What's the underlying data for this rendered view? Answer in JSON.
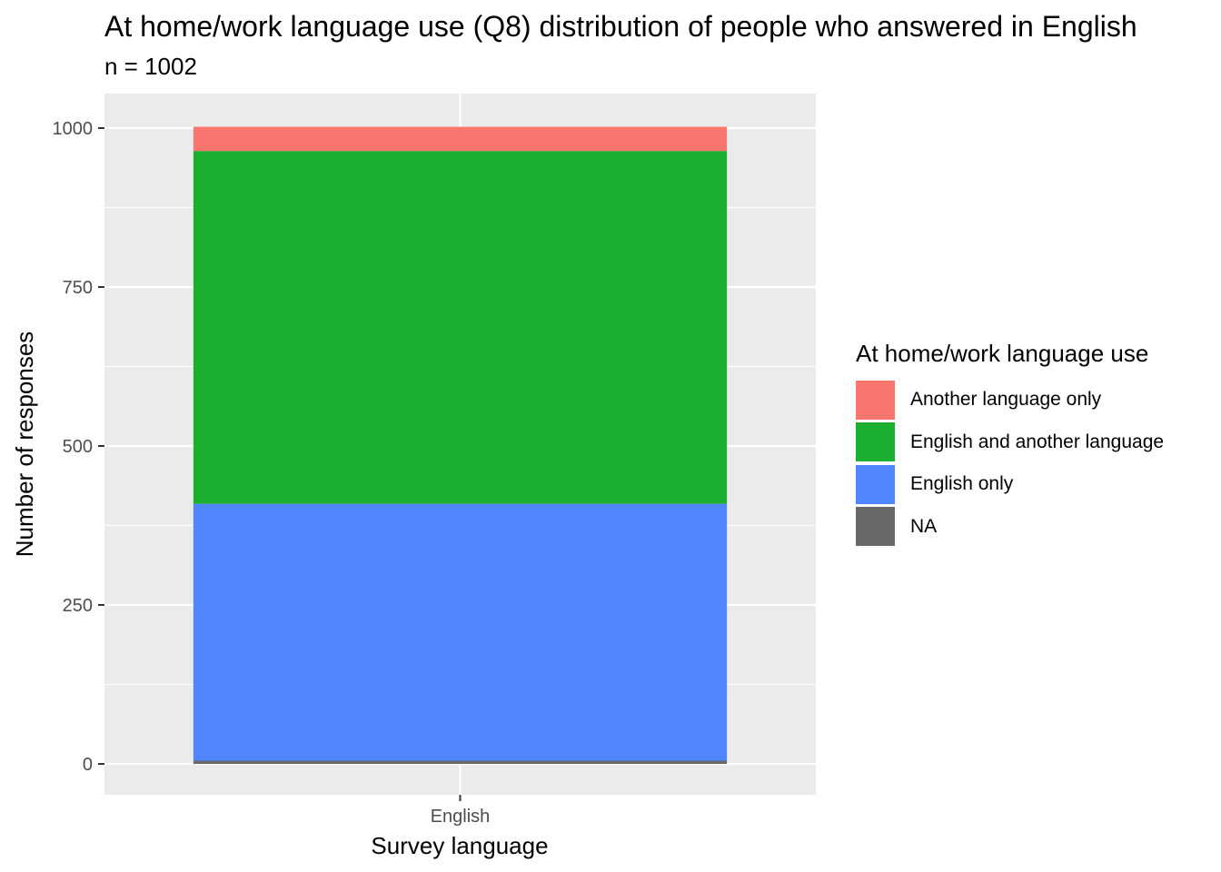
{
  "chart_data": {
    "type": "bar",
    "stacked": true,
    "title": "At home/work language use (Q8) distribution of people who answered in English",
    "subtitle": "n = 1002",
    "xlabel": "Survey language",
    "ylabel": "Number of responses",
    "categories": [
      "English"
    ],
    "ylim": [
      0,
      1050
    ],
    "yticks": [
      0,
      250,
      500,
      750,
      1000
    ],
    "grid": true,
    "legend": {
      "title": "At home/work language use",
      "placement": "right"
    },
    "series": [
      {
        "name": "Another language only",
        "values": [
          38
        ],
        "color": "#F8766D"
      },
      {
        "name": "English and another language",
        "values": [
          555
        ],
        "color": "#1AAF2F"
      },
      {
        "name": "English only",
        "values": [
          404
        ],
        "color": "#4F86FF"
      },
      {
        "name": "NA",
        "values": [
          5
        ],
        "color": "#696969"
      }
    ]
  }
}
